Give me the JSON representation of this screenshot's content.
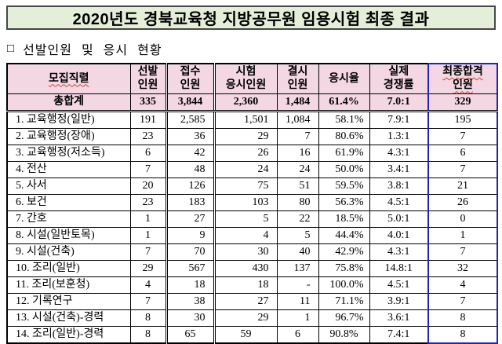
{
  "title": "2020년도 경북교육청 지방공무원 임용시험 최종 결과",
  "section_heading": {
    "bullet": "□",
    "text": "선발인원 및 응시 현황"
  },
  "colors": {
    "title_bg": "#e4eed8",
    "title_border": "#474747",
    "header_bg": "#f3d8e3",
    "highlight_column_border": "#2222bb",
    "spellcheck_underline": "#cc4433"
  },
  "table": {
    "columns": [
      {
        "label": "모집직렬",
        "spellcheck": true
      },
      {
        "label": "선발\n인원",
        "spellcheck": false
      },
      {
        "label": "접수\n인원",
        "spellcheck": false
      },
      {
        "label": "시험\n응시인원",
        "spellcheck": false
      },
      {
        "label": "결시\n인원",
        "spellcheck": false
      },
      {
        "label": "응시율",
        "spellcheck": false
      },
      {
        "label": "실제\n경쟁률",
        "spellcheck": false
      },
      {
        "label": "최종합격\n인원",
        "spellcheck": true
      }
    ],
    "total_row": {
      "label": "총합계",
      "values": [
        "335",
        "3,844",
        "2,360",
        "1,484",
        "61.4%",
        "7.0:1",
        "329"
      ]
    },
    "rows": [
      {
        "label": "1. 교육행정(일반)",
        "values": [
          "191",
          "2,585",
          "1,501",
          "1,084",
          "58.1%",
          "7.9:1",
          "195"
        ],
        "values_centered": false
      },
      {
        "label": "2. 교육행정(장애)",
        "values": [
          "23",
          "36",
          "29",
          "7",
          "80.6%",
          "1.3:1",
          "7"
        ],
        "values_centered": false
      },
      {
        "label": "3. 교육행정(저소득)",
        "values": [
          "6",
          "42",
          "26",
          "16",
          "61.9%",
          "4.3:1",
          "6"
        ],
        "values_centered": false
      },
      {
        "label": "4. 전산",
        "values": [
          "7",
          "48",
          "24",
          "24",
          "50.0%",
          "3.4:1",
          "7"
        ],
        "values_centered": false
      },
      {
        "label": "5. 사서",
        "values": [
          "20",
          "126",
          "75",
          "51",
          "59.5%",
          "3.8:1",
          "21"
        ],
        "values_centered": false
      },
      {
        "label": "6. 보건",
        "values": [
          "23",
          "183",
          "103",
          "80",
          "56.3%",
          "4.5:1",
          "26"
        ],
        "values_centered": false
      },
      {
        "label": "7. 간호",
        "values": [
          "1",
          "27",
          "5",
          "22",
          "18.5%",
          "5.0:1",
          "0"
        ],
        "values_centered": false
      },
      {
        "label": "8. 시설(일반토목)",
        "values": [
          "1",
          "9",
          "4",
          "5",
          "44.4%",
          "4.0:1",
          "1"
        ],
        "values_centered": false
      },
      {
        "label": "9. 시설(건축)",
        "values": [
          "7",
          "70",
          "30",
          "40",
          "42.9%",
          "4.3:1",
          "7"
        ],
        "values_centered": false
      },
      {
        "label": "10. 조리(일반)",
        "values": [
          "29",
          "567",
          "430",
          "137",
          "75.8%",
          "14.8:1",
          "32"
        ],
        "values_centered": false
      },
      {
        "label": "11. 조리(보훈청)",
        "values": [
          "4",
          "18",
          "18",
          "-",
          "100.0%",
          "4.5:1",
          "4"
        ],
        "values_centered": false
      },
      {
        "label": "12. 기록연구",
        "values": [
          "7",
          "38",
          "27",
          "11",
          "71.1%",
          "3.9:1",
          "7"
        ],
        "values_centered": false
      },
      {
        "label": "13. 시설(건축)-경력",
        "values": [
          "8",
          "30",
          "29",
          "1",
          "96.7%",
          "3.6:1",
          "8"
        ],
        "values_centered": false
      },
      {
        "label": "14. 조리(일반)-경력",
        "values": [
          "8",
          "65",
          "59",
          "6",
          "90.8%",
          "7.4:1",
          "8"
        ],
        "values_centered": true
      }
    ]
  }
}
